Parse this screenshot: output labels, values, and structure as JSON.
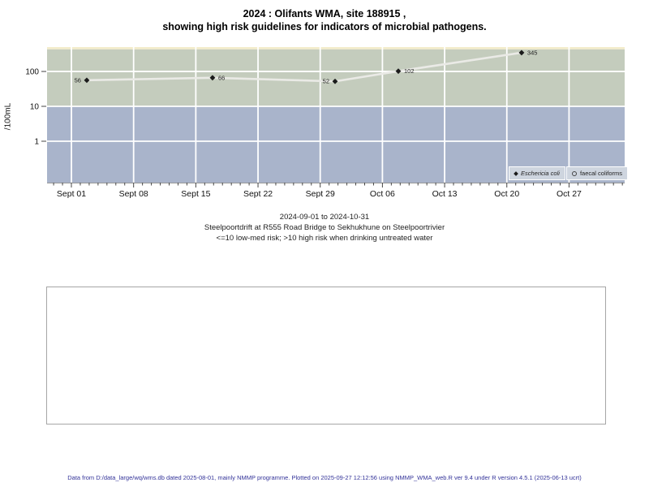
{
  "title": {
    "line1": "2024 : Olifants WMA, site 188915 ,",
    "line2": "showing high risk guidelines for indicators of microbial pathogens."
  },
  "subtitle": {
    "line1": "2024-09-01 to 2024-10-31",
    "line2": "Steelpoortdrift at R555 Road Bridge to Sekhukhune on Steelpoortrivier",
    "line3": "<=10 low-med risk; >10 high risk when drinking untreated water"
  },
  "footer": "Data from D:/data_large/wq/wms.db dated 2025-08-01, mainly NMMP programme. Plotted on 2025-09-27 12:12:56 using NMMP_WMA_web.R ver 9.4 under R version 4.5.1 (2025-06-13 ucrt)",
  "legend": {
    "entries": [
      {
        "label": "Eschericia coli",
        "marker": "filled-diamond",
        "italic": true
      },
      {
        "label": "faecal coliforms",
        "marker": "open-circle",
        "italic": false
      }
    ]
  },
  "chart_data": {
    "type": "scatter",
    "title": "2024 : Olifants WMA, site 188915 , showing high risk guidelines for indicators of microbial pathogens.",
    "xlabel": "",
    "ylabel": "/100mL",
    "y_scale": "log",
    "ylim": [
      0.065,
      500
    ],
    "y_ticks": [
      100,
      10,
      1
    ],
    "xlim_days": [
      -2.74,
      62.26
    ],
    "x_minor_tick_every_days": 1,
    "x_ticks": [
      {
        "label": "Sept 01",
        "day": 0
      },
      {
        "label": "Sept 08",
        "day": 7
      },
      {
        "label": "Sept 15",
        "day": 14
      },
      {
        "label": "Sept 22",
        "day": 21
      },
      {
        "label": "Sept 29",
        "day": 28
      },
      {
        "label": "Oct 06",
        "day": 35
      },
      {
        "label": "Oct 13",
        "day": 42
      },
      {
        "label": "Oct 20",
        "day": 49
      },
      {
        "label": "Oct 27",
        "day": 56
      }
    ],
    "grid": true,
    "legend_position": "bottom-right",
    "line_color": "#eaeae6",
    "bands": [
      {
        "name": "very-high-risk",
        "from": 430,
        "to": 500,
        "color": "#f3eccb"
      },
      {
        "name": "high-risk",
        "from": 10,
        "to": 430,
        "color": "#c4ccbd"
      },
      {
        "name": "low-med-risk",
        "from": 0.065,
        "to": 10,
        "color": "#a9b4cb"
      }
    ],
    "series": [
      {
        "name": "Eschericia coli",
        "marker": "filled-diamond",
        "points": [
          {
            "day": 1.73,
            "value": 56,
            "label_side": "left"
          },
          {
            "day": 15.88,
            "value": 66,
            "label_side": "right"
          },
          {
            "day": 29.67,
            "value": 52,
            "label_side": "left"
          },
          {
            "day": 36.79,
            "value": 102,
            "label_side": "right"
          },
          {
            "day": 50.66,
            "value": 345,
            "label_side": "right"
          }
        ]
      },
      {
        "name": "faecal coliforms",
        "marker": "open-circle",
        "points": []
      }
    ]
  }
}
